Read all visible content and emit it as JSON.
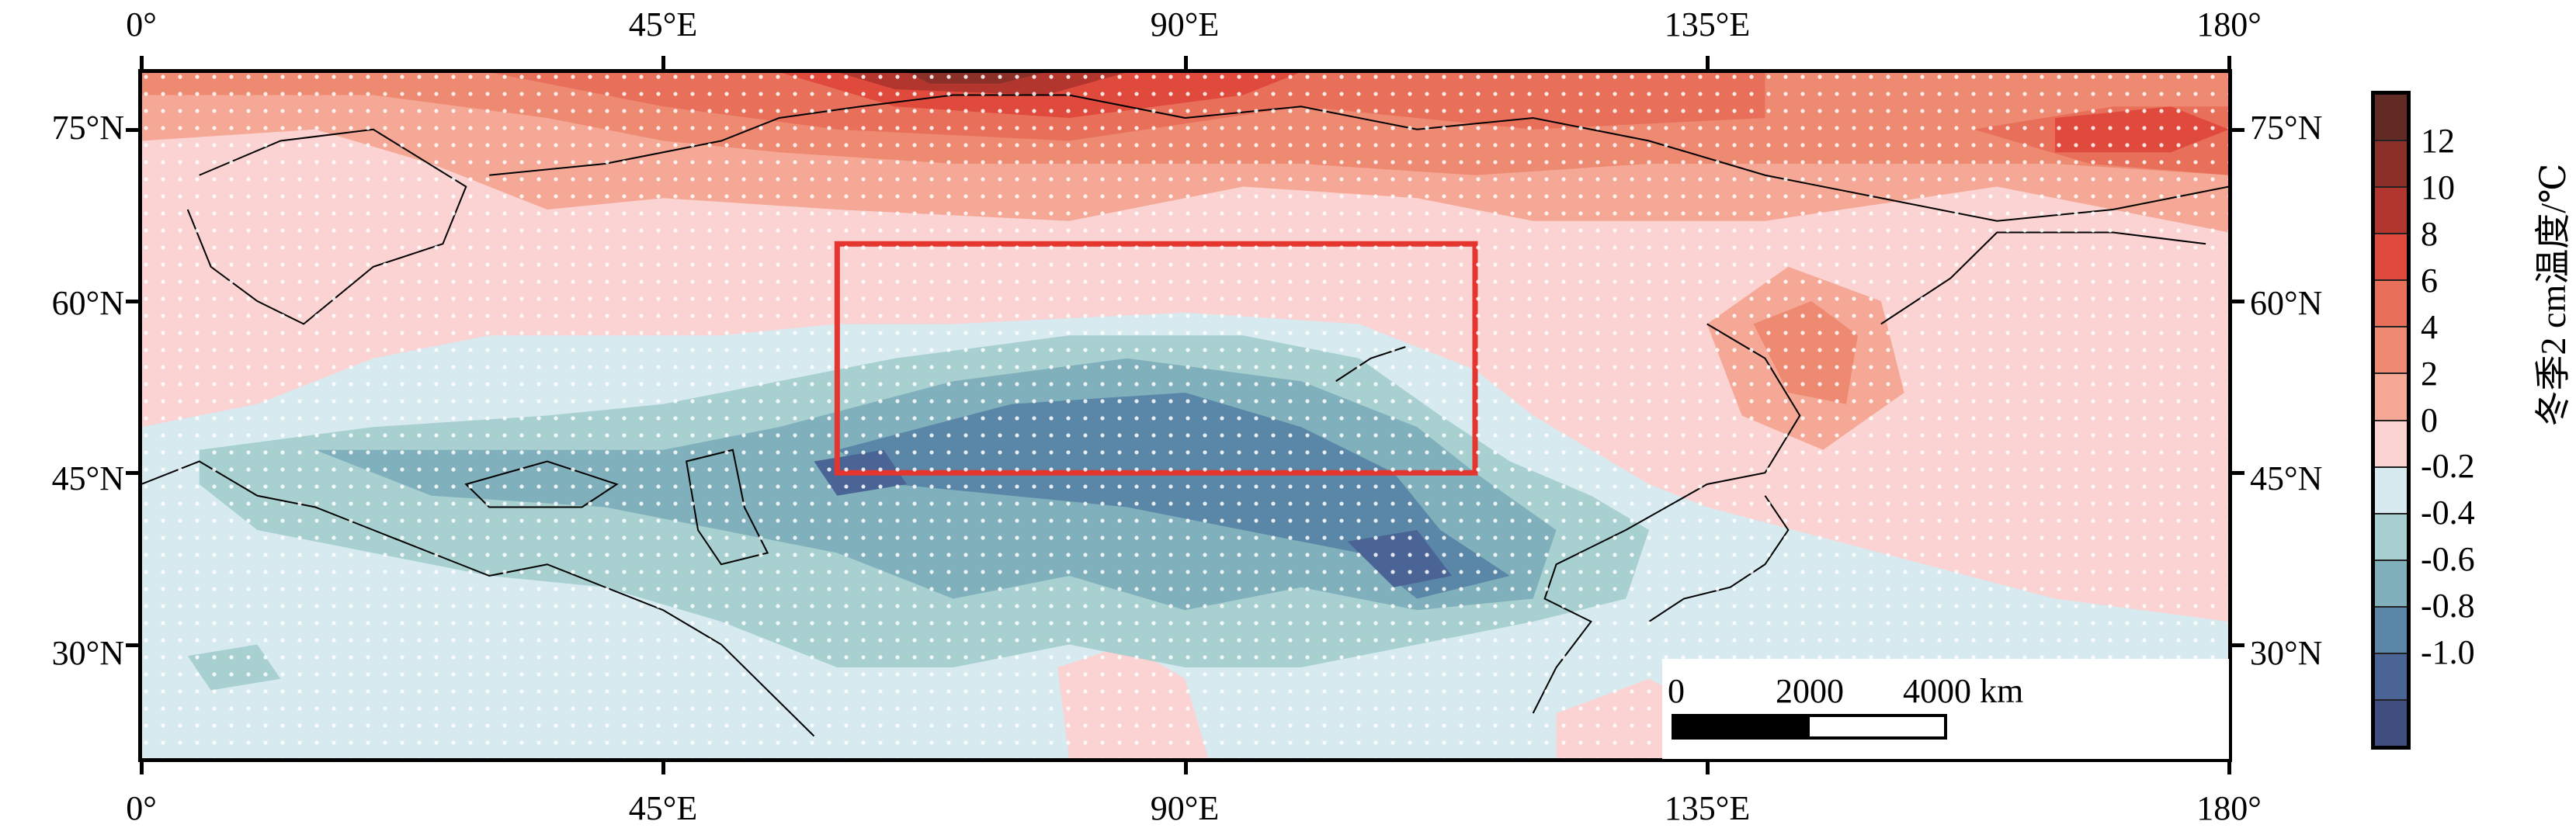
{
  "axes": {
    "x_ticks_top": [
      "0°",
      "45°E",
      "90°E",
      "135°E",
      "180°"
    ],
    "x_ticks_bottom": [
      "0°",
      "45°E",
      "90°E",
      "135°E",
      "180°"
    ],
    "y_ticks_left": [
      "75°N",
      "60°N",
      "45°N",
      "30°N"
    ],
    "y_ticks_right": [
      "75°N",
      "60°N",
      "45°N",
      "30°N"
    ],
    "lon_range": [
      0,
      180
    ],
    "lat_range": [
      20,
      80
    ]
  },
  "colorbar": {
    "title": "冬季2 cm温度/℃",
    "labels": [
      "12",
      "10",
      "8",
      "6",
      "4",
      "2",
      "0",
      "-0.2",
      "-0.4",
      "-0.6",
      "-0.8",
      "-1.0"
    ],
    "colors": [
      "#612a25",
      "#8a3029",
      "#b3362e",
      "#e04a3c",
      "#e8705a",
      "#ee8a72",
      "#f4a895",
      "#fbd3d2",
      "#d6eaf0",
      "#a8d0d0",
      "#7fb0bb",
      "#5a86a8",
      "#4a6496",
      "#3f4e7e"
    ]
  },
  "scale_bar": {
    "labels": [
      "0",
      "2000",
      "4000 km"
    ]
  },
  "study_region": {
    "lon": [
      60,
      115
    ],
    "lat": [
      45,
      65
    ],
    "color": "#e5352f"
  }
}
